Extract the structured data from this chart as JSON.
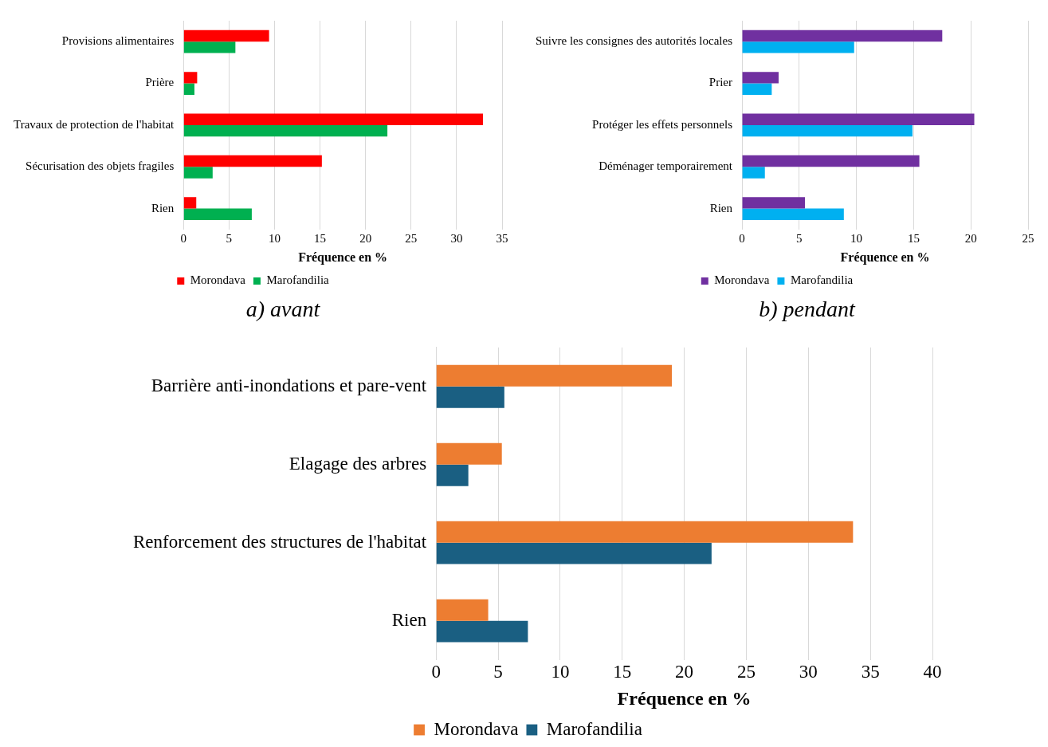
{
  "chart_data": [
    {
      "type": "bar",
      "orientation": "horizontal",
      "title": "a)  avant",
      "xlabel": "Fréquence en %",
      "categories": [
        "Provisions alimentaires",
        "Prière",
        "Travaux de protection de l'habitat",
        "Sécurisation des objets fragiles",
        "Rien"
      ],
      "series": [
        {
          "name": "Morondava",
          "color": "#ff0000",
          "values": [
            9.4,
            1.5,
            32.9,
            15.2,
            1.4
          ]
        },
        {
          "name": "Marofandilia",
          "color": "#00b050",
          "values": [
            5.7,
            1.2,
            22.4,
            3.2,
            7.5
          ]
        }
      ],
      "xlim": [
        0,
        35
      ],
      "xticks": [
        0,
        5,
        10,
        15,
        20,
        25,
        30,
        35
      ],
      "grid": "x",
      "legend": "bottom"
    },
    {
      "type": "bar",
      "orientation": "horizontal",
      "title": "b)  pendant",
      "xlabel": "Fréquence en %",
      "categories": [
        "Suivre les consignes des autorités locales",
        "Prier",
        "Protéger les effets personnels",
        "Déménager temporairement",
        "Rien"
      ],
      "series": [
        {
          "name": "Morondava",
          "color": "#7030a0",
          "values": [
            17.5,
            3.2,
            20.3,
            15.5,
            5.5
          ]
        },
        {
          "name": "Marofandilia",
          "color": "#00b0f0",
          "values": [
            9.8,
            2.6,
            14.9,
            2.0,
            8.9
          ]
        }
      ],
      "xlim": [
        0,
        25
      ],
      "xticks": [
        0,
        5,
        10,
        15,
        20,
        25
      ],
      "grid": "x",
      "legend": "bottom"
    },
    {
      "type": "bar",
      "orientation": "horizontal",
      "xlabel": "Fréquence en %",
      "categories": [
        "Barrière anti-inondations et pare-vent",
        "Elagage des arbres",
        "Renforcement des structures de l'habitat",
        "Rien"
      ],
      "series": [
        {
          "name": "Morondava",
          "color": "#ed7d31",
          "values": [
            19.0,
            5.3,
            33.6,
            4.2
          ]
        },
        {
          "name": "Marofandilia",
          "color": "#1a5f82",
          "values": [
            5.5,
            2.6,
            22.2,
            7.4
          ]
        }
      ],
      "xlim": [
        0,
        40
      ],
      "xticks": [
        0,
        5,
        10,
        15,
        20,
        25,
        30,
        35,
        40
      ],
      "grid": "x",
      "legend": "bottom"
    }
  ]
}
